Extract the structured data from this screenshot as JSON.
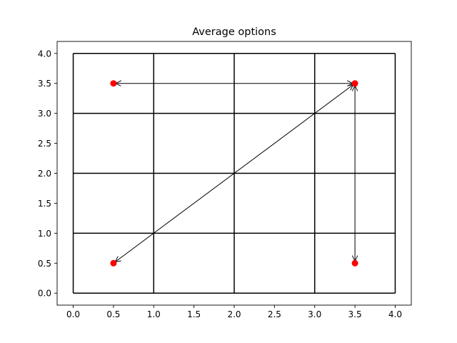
{
  "chart_data": {
    "type": "scatter",
    "title": "Average options",
    "xlabel": "",
    "ylabel": "",
    "xlim": [
      -0.2,
      4.2
    ],
    "ylim": [
      -0.2,
      4.2
    ],
    "x_ticks": [
      "0.0",
      "0.5",
      "1.0",
      "1.5",
      "2.0",
      "2.5",
      "3.0",
      "3.5",
      "4.0"
    ],
    "y_ticks": [
      "0.0",
      "0.5",
      "1.0",
      "1.5",
      "2.0",
      "2.5",
      "3.0",
      "3.5",
      "4.0"
    ],
    "grid": {
      "x_lines": [
        0,
        1,
        2,
        3,
        4
      ],
      "y_lines": [
        0,
        1,
        2,
        3,
        4
      ],
      "x_extent": [
        0,
        4
      ],
      "y_extent": [
        0,
        4
      ],
      "color": "#000000"
    },
    "points": {
      "color": "#ff0000",
      "x": [
        0.5,
        3.5,
        0.5,
        3.5
      ],
      "y": [
        3.5,
        3.5,
        0.5,
        0.5
      ]
    },
    "arrows": [
      {
        "from": [
          3.5,
          3.5
        ],
        "to": [
          0.5,
          3.5
        ],
        "style": "<->"
      },
      {
        "from": [
          0.5,
          0.5
        ],
        "to": [
          3.5,
          3.5
        ],
        "style": "<->"
      },
      {
        "from": [
          3.5,
          3.5
        ],
        "to": [
          3.5,
          0.5
        ],
        "style": "<->"
      }
    ],
    "legend": "none"
  }
}
